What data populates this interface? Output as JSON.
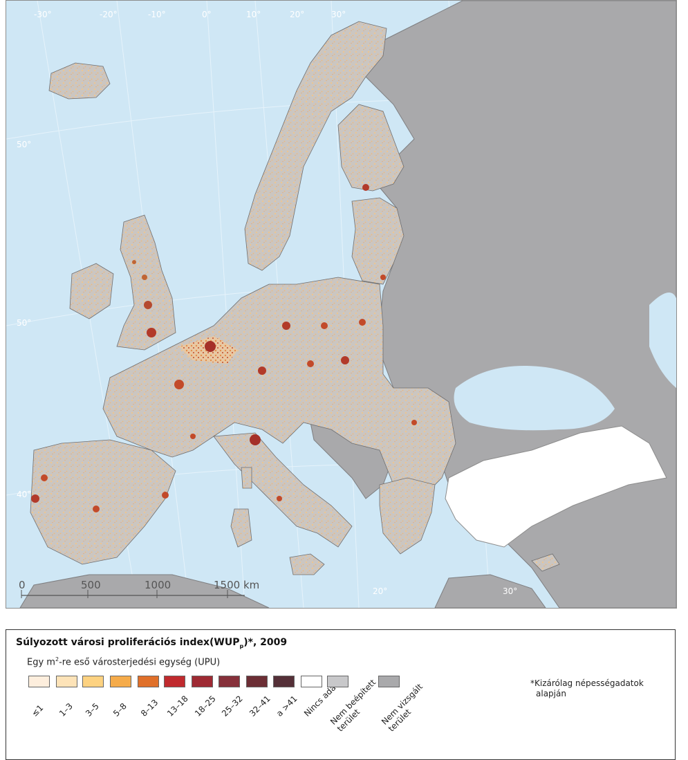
{
  "map": {
    "graticule_labels": [
      "-30°",
      "-20°",
      "-10°",
      "0°",
      "10°",
      "20°",
      "30°",
      "50°",
      "50°",
      "40°",
      "20°",
      "30°"
    ],
    "scale_bar": {
      "ticks": [
        "0",
        "500",
        "1000",
        "1500 km"
      ]
    },
    "colors": {
      "sea": "#cfe7f5",
      "not_examined": "#a9a9ab",
      "not_built": "#c6c6c8",
      "no_data": "#ffffff",
      "urban_low": "#f5cf98",
      "urban_high": "#8b1b1b"
    }
  },
  "legend": {
    "title_main": "Súlyozott városi proliferációs index(WUP",
    "title_sub": "p",
    "title_tail": ")*, 2009",
    "subtitle_pre": "Egy m",
    "subtitle_sup": "2",
    "subtitle_post": "-re eső városterjedési egység (UPU)",
    "items": [
      {
        "label": "≤1",
        "color": "#fdeedd"
      },
      {
        "label": "1–3",
        "color": "#fde3b8"
      },
      {
        "label": "3–5",
        "color": "#fdd281"
      },
      {
        "label": "5–8",
        "color": "#f5ab4a"
      },
      {
        "label": "8–13",
        "color": "#e0702a"
      },
      {
        "label": "13–18",
        "color": "#c02a2e"
      },
      {
        "label": "18–25",
        "color": "#9e2a33"
      },
      {
        "label": "25–32",
        "color": "#86303a"
      },
      {
        "label": "32–41",
        "color": "#6c2e35"
      },
      {
        "label": "a >41",
        "color": "#553038"
      },
      {
        "label": "Nincs adat",
        "color": "#ffffff"
      },
      {
        "label": "Nem beépített\nterület",
        "color": "#c8c8ca"
      },
      {
        "label": "Nem vizsgált\nterület",
        "color": "#a9a9ab"
      }
    ],
    "note_line1": "*Kizárólag népességadatok",
    "note_line2": "alapján"
  }
}
